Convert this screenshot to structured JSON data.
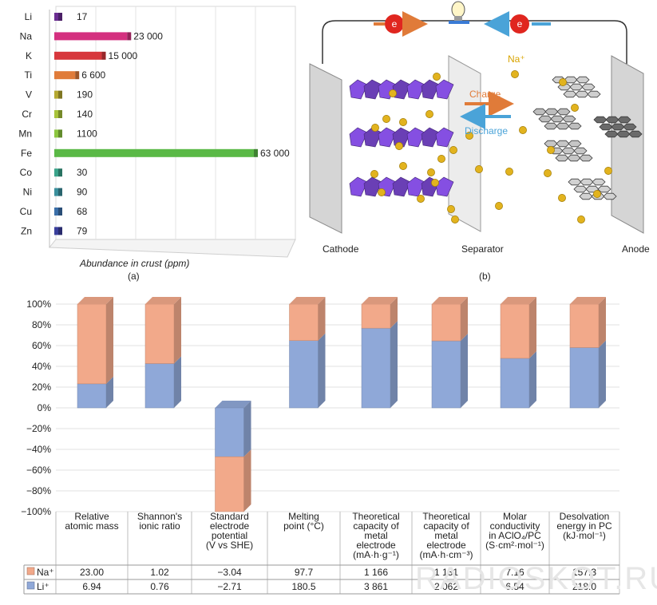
{
  "panel_a": {
    "label": "(a)",
    "xlabel": "Abundance in crust (ppm)"
  },
  "panel_b": {
    "label": "(b)",
    "cathode_label": "Cathode",
    "separator_label": "Separator",
    "anode_label": "Anode",
    "ion_label": "Na⁺",
    "charge_label": "Charge",
    "discharge_label": "Discharge",
    "electron_label": "e",
    "colors": {
      "charge": "#e07b39",
      "discharge": "#4aa3d8",
      "electron": "#e0261f",
      "sodium": "#e2b31e",
      "cathode": "#6a3fb5",
      "anode": "#8c8c8c"
    }
  },
  "watermark": "RADIOSKOT.RU",
  "chart_data": [
    {
      "type": "bar",
      "orientation": "horizontal",
      "categories": [
        "Li",
        "Na",
        "K",
        "Ti",
        "V",
        "Cr",
        "Mn",
        "Fe",
        "Co",
        "Ni",
        "Cu",
        "Zn"
      ],
      "values": [
        17,
        23000,
        15000,
        6600,
        190,
        140,
        1100,
        63000,
        30,
        90,
        68,
        79
      ],
      "value_labels": [
        "17",
        "23 000",
        "15 000",
        "6 600",
        "190",
        "140",
        "1100",
        "63 000",
        "30",
        "90",
        "68",
        "79"
      ],
      "colors": [
        "#6a2d91",
        "#d4307f",
        "#d7373c",
        "#e07b39",
        "#b5a830",
        "#a8c33a",
        "#8cc63f",
        "#5ab946",
        "#3aa38a",
        "#3a8f9c",
        "#3a6ea8",
        "#3a3f9c"
      ],
      "xlabel": "Abundance in crust (ppm)",
      "xlim": [
        0,
        63000
      ]
    },
    {
      "type": "bar",
      "stacked": true,
      "normalized": true,
      "categories": [
        [
          "Relative",
          "atomic mass"
        ],
        [
          "Shannon's",
          "ionic ratio"
        ],
        [
          "Standard",
          "electrode",
          "potential",
          "(V vs SHE)"
        ],
        [
          "Melting",
          "point (°C)"
        ],
        [
          "Theoretical",
          "capacity of",
          "metal",
          "electrode",
          "(mA·h·g⁻¹)"
        ],
        [
          "Theoretical",
          "capacity of",
          "metal",
          "electrode",
          "(mA·h·cm⁻³)"
        ],
        [
          "Molar",
          "conductivity",
          "in AClO₄/PC",
          "(S·cm²·mol⁻¹)"
        ],
        [
          "Desolvation",
          "energy in PC",
          "(kJ·mol⁻¹)"
        ]
      ],
      "series": [
        {
          "name": "Na⁺",
          "color": "#f2a98a",
          "values_text": [
            "23.00",
            "1.02",
            "−3.04",
            "97.7",
            "1 166",
            "1 131",
            "7.16",
            "157.3"
          ],
          "values": [
            23.0,
            1.02,
            -3.04,
            97.7,
            1166,
            1131,
            7.16,
            157.3
          ]
        },
        {
          "name": "Li⁺",
          "color": "#8fa8d8",
          "values_text": [
            "6.94",
            "0.76",
            "−2.71",
            "180.5",
            "3 861",
            "2 062",
            "6.54",
            "218.0"
          ],
          "values": [
            6.94,
            0.76,
            -2.71,
            180.5,
            3861,
            2062,
            6.54,
            218.0
          ]
        }
      ],
      "yticks": [
        "100%",
        "80%",
        "60%",
        "40%",
        "20%",
        "0%",
        "−20%",
        "−40%",
        "−60%",
        "−80%",
        "−100%"
      ],
      "ylim": [
        -100,
        100
      ]
    }
  ]
}
